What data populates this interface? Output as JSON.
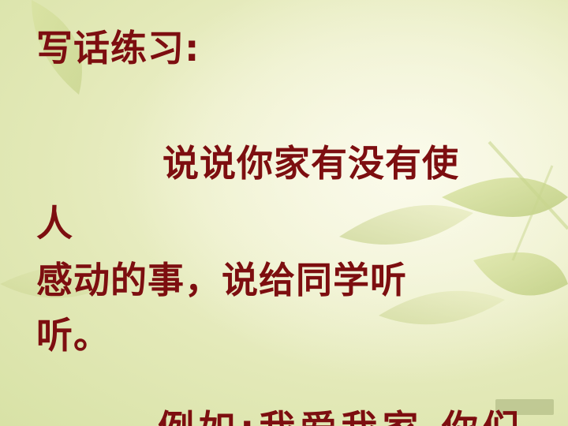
{
  "slide": {
    "title": "写话练习:",
    "paragraph_lines": [
      "说说你家有没有使",
      "人",
      "感动的事，说给同学听",
      "听。"
    ],
    "cutoff_line": "例如:我爱我家.你们"
  }
}
